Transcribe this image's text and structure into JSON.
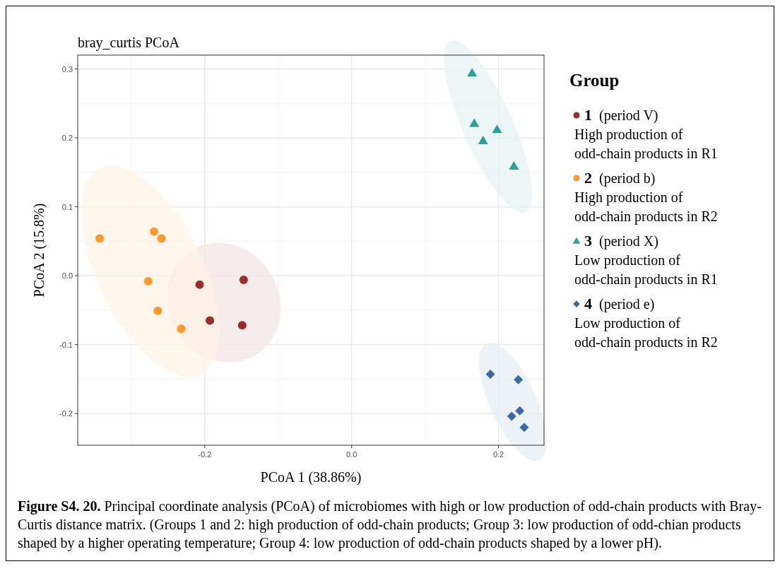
{
  "chart_data": {
    "type": "scatter",
    "title": "bray_curtis PCoA",
    "xlabel": "PCoA 1 (38.86%)",
    "ylabel": "PCoA 2 (15.8%)",
    "legend_title": "Group",
    "xlim": [
      -0.373,
      0.262
    ],
    "ylim": [
      -0.246,
      0.32
    ],
    "xticks": [
      -0.2,
      {
        "value": 0,
        "label": "0.0"
      },
      0.2
    ],
    "yticks": [
      -0.2,
      -0.1,
      {
        "value": 0,
        "label": "0.0"
      },
      0.1,
      0.2,
      0.3
    ],
    "grid": true,
    "legend": "right",
    "series": [
      {
        "name": "1 (period V)",
        "color": "#9e2a2b",
        "marker": "circle",
        "x": [
          -0.207,
          -0.147,
          -0.193,
          -0.149
        ],
        "values": [
          -0.013,
          -0.006,
          -0.065,
          -0.072
        ]
      },
      {
        "name": "2 (period b)",
        "color": "#ff9a2e",
        "marker": "circle",
        "x": [
          -0.343,
          -0.269,
          -0.259,
          -0.277,
          -0.264,
          -0.232
        ],
        "values": [
          0.054,
          0.064,
          0.054,
          -0.008,
          -0.051,
          -0.077
        ]
      },
      {
        "name": "3 (period X)",
        "color": "#2e9e9a",
        "marker": "triangle",
        "x": [
          0.164,
          0.167,
          0.179,
          0.198,
          0.221
        ],
        "values": [
          0.294,
          0.221,
          0.196,
          0.212,
          0.159
        ]
      },
      {
        "name": "4 (period e)",
        "color": "#3a68a6",
        "marker": "diamond",
        "x": [
          0.189,
          0.227,
          0.229,
          0.218,
          0.235
        ],
        "values": [
          -0.143,
          -0.151,
          -0.196,
          -0.204,
          -0.22
        ]
      }
    ],
    "annotations": [
      "High production of\nodd-chain products in R1",
      "High production of\nodd-chain products in R2",
      "Low production of\nodd-chain products in R1",
      "Low production of\nodd-chain products in R2",
      "Figure S4. 20.",
      "Principal coordinate analysis (PCoA) of microbiomes with high or low production of odd-chain products with Bray-Curtis distance matrix. (Groups 1 and 2: high production of odd-chain products; Group 3: low production of odd-chian products shaped by a higher operating temperature; Group 4: low production of odd-chain products shaped by a lower pH)."
    ]
  }
}
